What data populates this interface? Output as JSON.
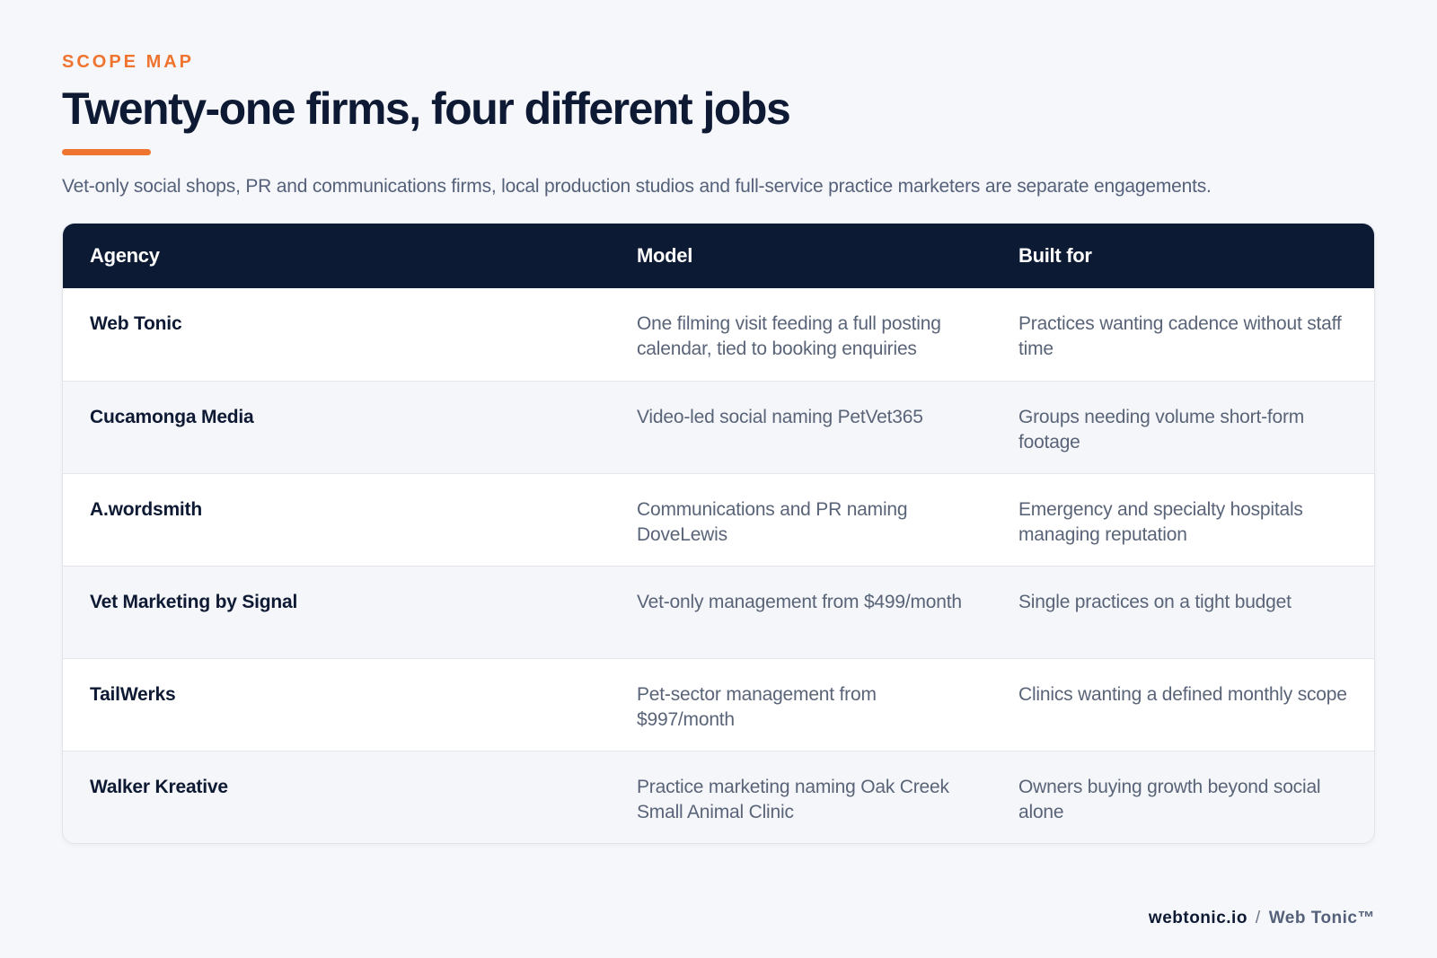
{
  "header": {
    "eyebrow": "SCOPE MAP",
    "title": "Twenty-one firms, four different jobs",
    "subtitle": "Vet-only social shops, PR and communications firms, local production studios and full-service practice marketers are separate engagements."
  },
  "table": {
    "columns": [
      "Agency",
      "Model",
      "Built for"
    ],
    "rows": [
      {
        "agency": "Web Tonic",
        "model": "One filming visit feeding a full posting calendar, tied to booking enquiries",
        "built_for": "Practices wanting cadence without staff time"
      },
      {
        "agency": "Cucamonga Media",
        "model": "Video-led social naming PetVet365",
        "built_for": "Groups needing volume short-form footage"
      },
      {
        "agency": "A.wordsmith",
        "model": "Communications and PR naming DoveLewis",
        "built_for": "Emergency and specialty hospitals managing reputation"
      },
      {
        "agency": "Vet Marketing by Signal",
        "model": "Vet-only management from $499/month",
        "built_for": "Single practices on a tight budget"
      },
      {
        "agency": "TailWerks",
        "model": "Pet-sector management from $997/month",
        "built_for": "Clinics wanting a defined monthly scope"
      },
      {
        "agency": "Walker Kreative",
        "model": "Practice marketing naming Oak Creek Small Animal Clinic",
        "built_for": "Owners buying growth beyond social alone"
      }
    ]
  },
  "footer": {
    "domain": "webtonic.io",
    "separator": "/",
    "brand": "Web Tonic™"
  },
  "colors": {
    "accent": "#ef7430",
    "navy": "#0c1a33",
    "background": "#f5f7fa"
  }
}
